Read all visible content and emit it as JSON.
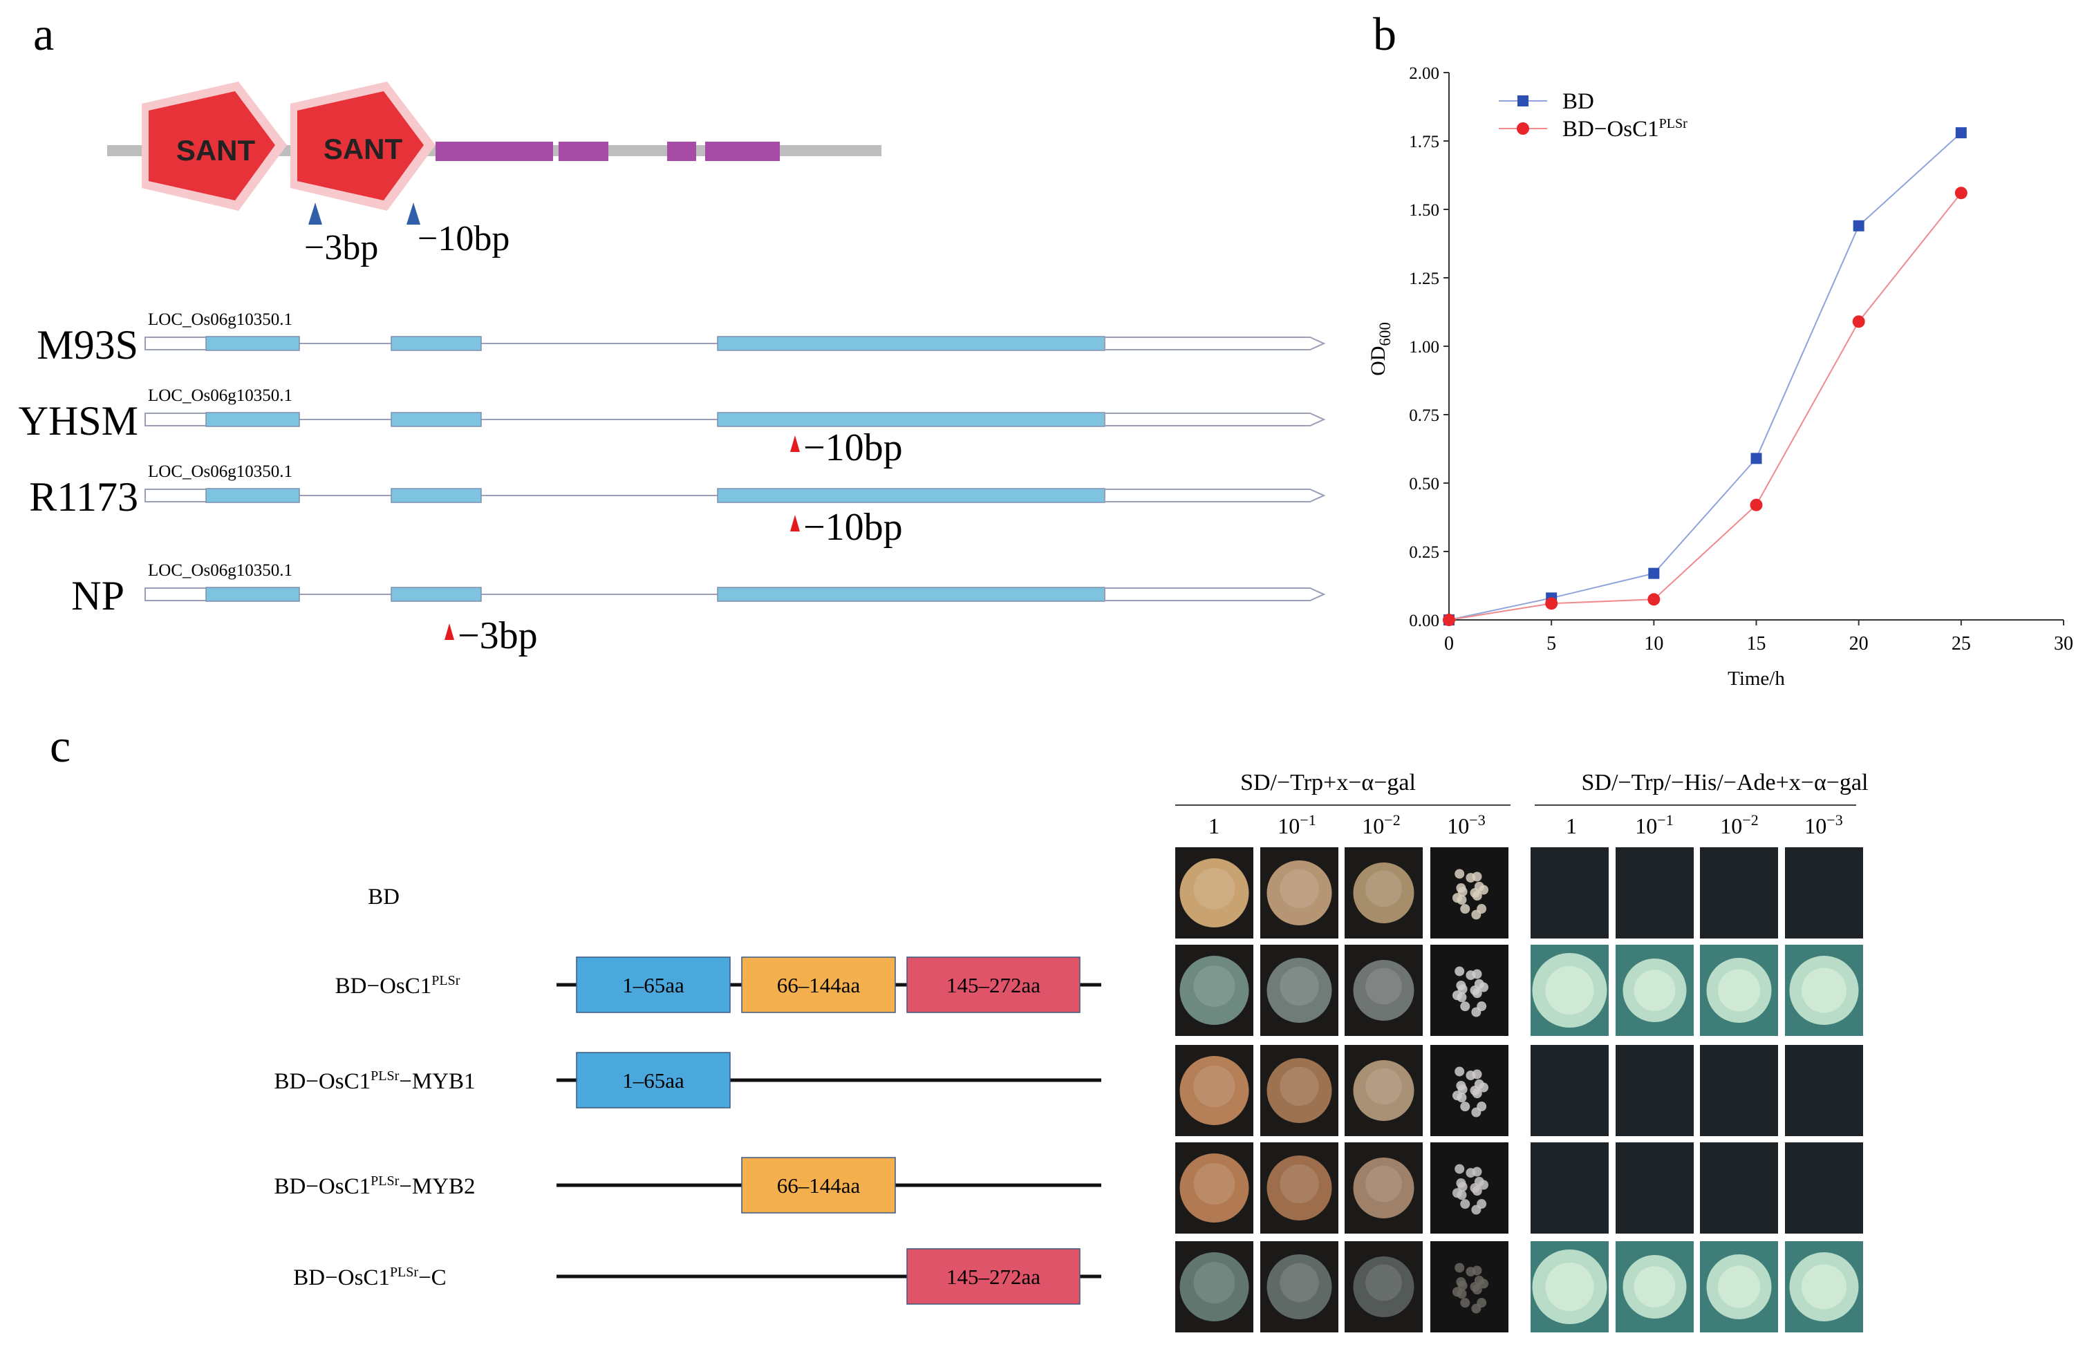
{
  "panel_a": {
    "letter": "a",
    "domains": {
      "sant1": "SANT",
      "sant2": "SANT"
    },
    "deletions": {
      "left": "−3bp",
      "right": "−10bp"
    },
    "gene_id": "LOC_Os06g10350.1",
    "tracks": [
      {
        "name": "M93S",
        "mutation": ""
      },
      {
        "name": "YHSM",
        "mutation": "−10bp"
      },
      {
        "name": "R1173",
        "mutation": "−10bp"
      },
      {
        "name": "NP",
        "mutation": "−3bp"
      }
    ],
    "colors": {
      "sant": "#e8323a",
      "motif": "#a64ca6",
      "backbone": "#bdbdbd",
      "exon": "#7ec3e0",
      "up_arrow": "#2f5fa8",
      "down_arrow": "#e41a1c"
    }
  },
  "panel_b": {
    "letter": "b",
    "chart_data": {
      "type": "line",
      "x": [
        0,
        5,
        10,
        15,
        20,
        25
      ],
      "series": [
        {
          "name": "BD",
          "values": [
            0.0,
            0.08,
            0.17,
            0.59,
            1.44,
            1.78
          ],
          "color": "#2b4fb5",
          "marker": "square"
        },
        {
          "name": "BD−OsC1",
          "name_sup": "PLSr",
          "values": [
            0.0,
            0.06,
            0.075,
            0.42,
            1.09,
            1.56
          ],
          "color": "#e8262a",
          "marker": "circle"
        }
      ],
      "xlabel": "Time/h",
      "ylabel_main": "OD",
      "ylabel_sub": "600",
      "xlim": [
        0,
        30
      ],
      "ylim": [
        0,
        2.0
      ],
      "xticks": [
        "0",
        "5",
        "10",
        "15",
        "20",
        "25",
        "30"
      ],
      "yticks": [
        "0.00",
        "0.25",
        "0.50",
        "0.75",
        "1.00",
        "1.25",
        "1.50",
        "1.75",
        "2.00"
      ],
      "legend": "top-left"
    }
  },
  "panel_c": {
    "letter": "c",
    "medium1": "SD/−Trp+x−α−gal",
    "medium2": "SD/−Trp/−His/−Ade+x−α−gal",
    "dilutions": [
      {
        "base": "1",
        "exp": ""
      },
      {
        "base": "10",
        "exp": "−1"
      },
      {
        "base": "10",
        "exp": "−2"
      },
      {
        "base": "10",
        "exp": "−3"
      }
    ],
    "constructs": [
      {
        "pre": "BD",
        "sup": "",
        "post": ""
      },
      {
        "pre": "BD−OsC1",
        "sup": "PLSr",
        "post": ""
      },
      {
        "pre": "BD−OsC1",
        "sup": "PLSr",
        "post": "−MYB1"
      },
      {
        "pre": "BD−OsC1",
        "sup": "PLSr",
        "post": "−MYB2"
      },
      {
        "pre": "BD−OsC1",
        "sup": "PLSr",
        "post": "−C"
      }
    ],
    "fragments": {
      "f1": "1–65aa",
      "f2": "66–144aa",
      "f3": "145–272aa"
    },
    "colors": {
      "f1": "#4aa8dd",
      "f2": "#f4b04e",
      "f3": "#e0546a"
    }
  }
}
